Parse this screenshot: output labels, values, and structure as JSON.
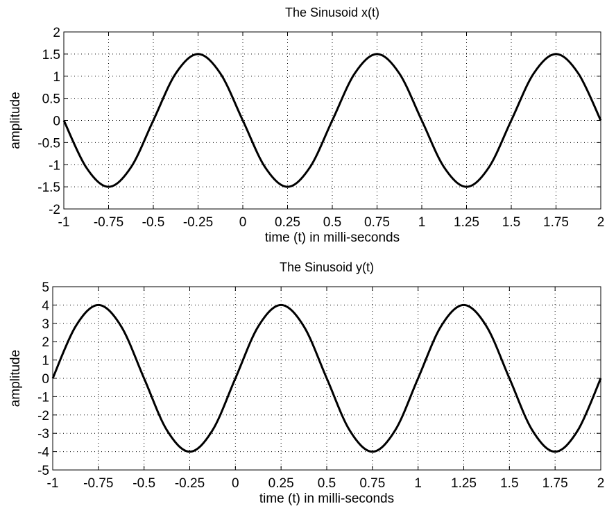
{
  "chart_data": [
    {
      "type": "line",
      "title": "The Sinusoid x(t)",
      "xlabel": "time (t) in milli-seconds",
      "ylabel": "amplitude",
      "xlim": [
        -1,
        2
      ],
      "ylim": [
        -2,
        2
      ],
      "x_ticks": [
        -1,
        -0.75,
        -0.5,
        -0.25,
        0,
        0.25,
        0.5,
        0.75,
        1,
        1.25,
        1.5,
        1.75,
        2
      ],
      "x_tick_labels": [
        "-1",
        "-0.75",
        "-0.5",
        "-0.25",
        "0",
        "0.25",
        "0.5",
        "0.75",
        "1",
        "1.25",
        "1.5",
        "1.75",
        "2"
      ],
      "y_ticks": [
        -2,
        -1.5,
        -1,
        -0.5,
        0,
        0.5,
        1,
        1.5,
        2
      ],
      "y_tick_labels": [
        "-2",
        "-1.5",
        "-1",
        "-0.5",
        "0",
        "0.5",
        "1",
        "1.5",
        "2"
      ],
      "grid": true,
      "series": [
        {
          "color": "#000000",
          "x": [
            -1,
            -0.875,
            -0.75,
            -0.625,
            -0.5,
            -0.375,
            -0.25,
            -0.125,
            0,
            0.125,
            0.25,
            0.375,
            0.5,
            0.625,
            0.75,
            0.875,
            1,
            1.125,
            1.25,
            1.375,
            1.5,
            1.625,
            1.75,
            1.875,
            2
          ],
          "y": [
            0,
            -1.06,
            -1.5,
            -1.06,
            0,
            1.06,
            1.5,
            1.06,
            0,
            -1.06,
            -1.5,
            -1.06,
            0,
            1.06,
            1.5,
            1.06,
            0,
            -1.06,
            -1.5,
            -1.06,
            0,
            1.06,
            1.5,
            1.06,
            0
          ]
        }
      ]
    },
    {
      "type": "line",
      "title": "The Sinusoid y(t)",
      "xlabel": "time (t) in milli-seconds",
      "ylabel": "amplitude",
      "xlim": [
        -1,
        2
      ],
      "ylim": [
        -5,
        5
      ],
      "x_ticks": [
        -1,
        -0.75,
        -0.5,
        -0.25,
        0,
        0.25,
        0.5,
        0.75,
        1,
        1.25,
        1.5,
        1.75,
        2
      ],
      "x_tick_labels": [
        "-1",
        "-0.75",
        "-0.5",
        "-0.25",
        "0",
        "0.25",
        "0.5",
        "0.75",
        "1",
        "1.25",
        "1.5",
        "1.75",
        "2"
      ],
      "y_ticks": [
        -5,
        -4,
        -3,
        -2,
        -1,
        0,
        1,
        2,
        3,
        4,
        5
      ],
      "y_tick_labels": [
        "-5",
        "-4",
        "-3",
        "-2",
        "-1",
        "0",
        "1",
        "2",
        "3",
        "4",
        "5"
      ],
      "grid": true,
      "series": [
        {
          "color": "#000000",
          "x": [
            -1,
            -0.875,
            -0.75,
            -0.625,
            -0.5,
            -0.375,
            -0.25,
            -0.125,
            0,
            0.125,
            0.25,
            0.375,
            0.5,
            0.625,
            0.75,
            0.875,
            1,
            1.125,
            1.25,
            1.375,
            1.5,
            1.625,
            1.75,
            1.875,
            2
          ],
          "y": [
            0,
            2.83,
            4,
            2.83,
            0,
            -2.83,
            -4,
            -2.83,
            0,
            2.83,
            4,
            2.83,
            0,
            -2.83,
            -4,
            -2.83,
            0,
            2.83,
            4,
            2.83,
            0,
            -2.83,
            -4,
            -2.83,
            0
          ]
        }
      ]
    }
  ]
}
